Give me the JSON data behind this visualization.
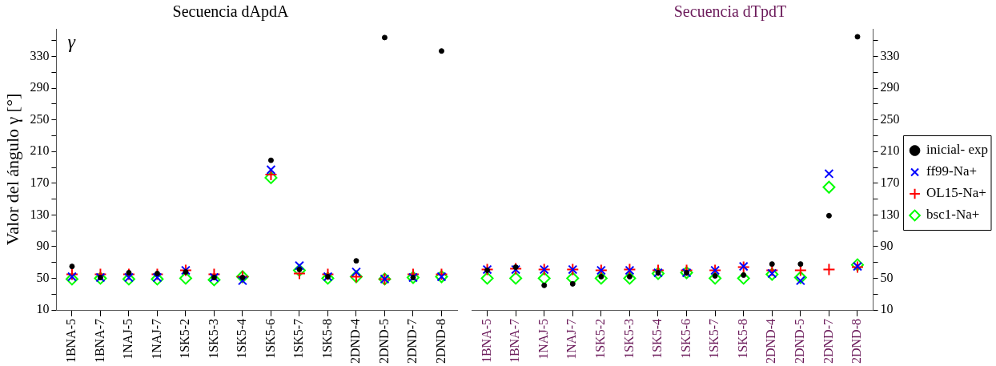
{
  "chart_data": [
    {
      "type": "scatter",
      "title": "Secuencia dApdA",
      "ylabel": "Valor del ángulo γ [°]",
      "annotations": [
        "γ"
      ],
      "categories": [
        "1BNA-5",
        "1BNA-7",
        "1NAJ-5",
        "1NAJ-7",
        "1SK5-2",
        "1SK5-3",
        "1SK5-4",
        "1SK5-6",
        "1SK5-7",
        "1SK5-8",
        "2DND-4",
        "2DND-5",
        "2DND-7",
        "2DND-8"
      ],
      "ylim": [
        10,
        365
      ],
      "yticks": [
        10,
        {
          "value": 30,
          "label": null
        },
        50,
        {
          "value": 70,
          "label": null
        },
        90,
        {
          "value": 110,
          "label": null
        },
        130,
        {
          "value": 150,
          "label": null
        },
        170,
        {
          "value": 190,
          "label": null
        },
        210,
        {
          "value": 230,
          "label": null
        },
        250,
        {
          "value": 270,
          "label": null
        },
        290,
        {
          "value": 310,
          "label": null
        },
        330,
        {
          "value": 350,
          "label": null
        }
      ],
      "grid": false,
      "legend": false,
      "series": [
        {
          "color": "#000000",
          "marker": "circle",
          "values": [
            65,
            51,
            57,
            56,
            58,
            51,
            51,
            199,
            61,
            52,
            72,
            354,
            51,
            337
          ]
        },
        {
          "color": "#0000ff",
          "marker": "cross",
          "values": [
            52,
            51,
            51,
            51,
            60,
            51,
            47,
            187,
            66,
            52,
            58,
            49,
            51,
            52
          ]
        },
        {
          "color": "#ff0000",
          "marker": "plus",
          "values": [
            55,
            55,
            55,
            55,
            60,
            55,
            52,
            181,
            56,
            55,
            52,
            49,
            55,
            55
          ]
        },
        {
          "color": "#00ff00",
          "marker": "diamond",
          "values": [
            49,
            50,
            49,
            49,
            50,
            48,
            52,
            177,
            60,
            50,
            52,
            49,
            51,
            52
          ]
        }
      ]
    },
    {
      "type": "scatter",
      "title": "Secuencia dTpdT",
      "categories": [
        "1BNA-5",
        "1BNA-7",
        "1NAJ-5",
        "1NAJ-7",
        "1SK5-2",
        "1SK5-3",
        "1SK5-4",
        "1SK5-6",
        "1SK5-7",
        "1SK5-8",
        "2DND-4",
        "2DND-5",
        "2DND-7",
        "2DND-8"
      ],
      "ylim": [
        10,
        365
      ],
      "yticks": [
        10,
        {
          "value": 30,
          "label": null
        },
        50,
        {
          "value": 70,
          "label": null
        },
        90,
        {
          "value": 110,
          "label": null
        },
        130,
        {
          "value": 150,
          "label": null
        },
        170,
        {
          "value": 190,
          "label": null
        },
        210,
        {
          "value": 230,
          "label": null
        },
        250,
        {
          "value": 270,
          "label": null
        },
        290,
        {
          "value": 310,
          "label": null
        },
        330,
        {
          "value": 350,
          "label": null
        }
      ],
      "grid": false,
      "legend": "right",
      "series": [
        {
          "name": "inicial- exp",
          "color": "#000000",
          "marker": "circle",
          "values": [
            60,
            64,
            41,
            43,
            52,
            52,
            57,
            57,
            53,
            54,
            68,
            68,
            129,
            355
          ]
        },
        {
          "name": "ff99-Na+",
          "color": "#0000ff",
          "marker": "cross",
          "values": [
            61,
            61,
            61,
            61,
            60,
            60,
            57,
            57,
            60,
            65,
            56,
            47,
            182,
            65
          ]
        },
        {
          "name": "OL15-Na+",
          "color": "#ff0000",
          "marker": "plus",
          "values": [
            61,
            62,
            61,
            61,
            60,
            61,
            60,
            60,
            60,
            64,
            60,
            60,
            61,
            64
          ]
        },
        {
          "name": "bsc1-Na+",
          "color": "#00ff00",
          "marker": "diamond",
          "values": [
            50,
            50,
            50,
            50,
            50,
            50,
            56,
            57,
            50,
            50,
            55,
            51,
            165,
            67
          ]
        }
      ]
    }
  ]
}
